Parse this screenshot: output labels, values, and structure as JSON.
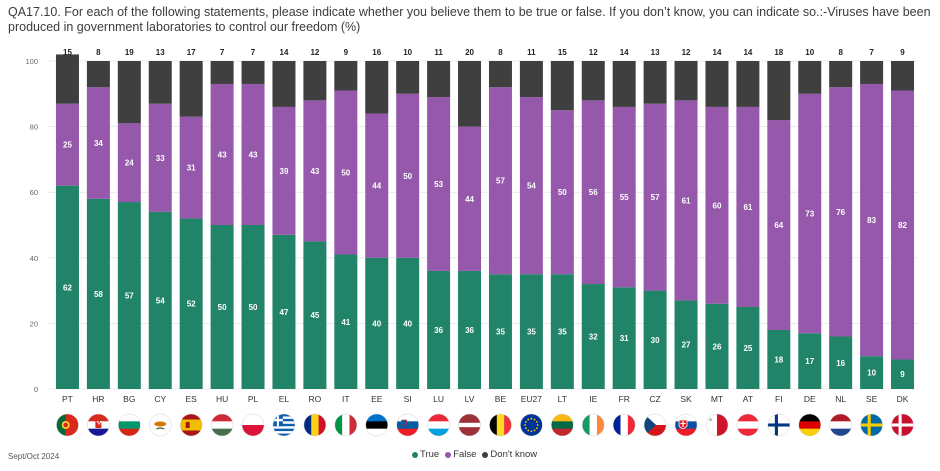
{
  "title": "QA17.10. For each of the following statements, please indicate whether you believe them to be true or false. If you don’t know, you can indicate so.:-Viruses have been produced in government laboratories to control our freedom (%)",
  "source": "Sept/Oct 2024",
  "colors": {
    "true": "#218469",
    "false": "#9558aa",
    "dont_know": "#3f3f3f",
    "grid": "#dcdcdc"
  },
  "chart_data": {
    "type": "bar",
    "stacked": true,
    "orientation": "vertical",
    "ylim": [
      0,
      100
    ],
    "yticks": [
      0,
      20,
      40,
      60,
      80,
      100
    ],
    "grid": true,
    "legend_position": "bottom-center",
    "categories": [
      "PT",
      "HR",
      "BG",
      "CY",
      "ES",
      "HU",
      "PL",
      "EL",
      "RO",
      "IT",
      "EE",
      "SI",
      "LU",
      "LV",
      "BE",
      "EU27",
      "LT",
      "IE",
      "FR",
      "CZ",
      "SK",
      "MT",
      "AT",
      "FI",
      "DE",
      "NL",
      "SE",
      "DK"
    ],
    "series": [
      {
        "name": "True",
        "color": "#218469",
        "values": [
          62,
          58,
          57,
          54,
          52,
          50,
          50,
          47,
          45,
          41,
          40,
          40,
          36,
          36,
          35,
          35,
          35,
          32,
          31,
          30,
          27,
          26,
          25,
          18,
          17,
          16,
          10,
          9
        ]
      },
      {
        "name": "False",
        "color": "#9558aa",
        "values": [
          25,
          34,
          24,
          33,
          31,
          43,
          43,
          39,
          43,
          50,
          44,
          50,
          53,
          44,
          57,
          54,
          50,
          56,
          55,
          57,
          61,
          60,
          61,
          64,
          73,
          76,
          83,
          82
        ]
      },
      {
        "name": "Don't know",
        "color": "#3f3f3f",
        "values": [
          15,
          8,
          19,
          13,
          17,
          7,
          7,
          14,
          12,
          9,
          16,
          10,
          11,
          20,
          8,
          11,
          15,
          12,
          14,
          13,
          12,
          14,
          14,
          18,
          10,
          8,
          7,
          9
        ]
      }
    ]
  },
  "flags": [
    {
      "code": "PT",
      "icon": "portugal-flag-icon"
    },
    {
      "code": "HR",
      "icon": "croatia-flag-icon"
    },
    {
      "code": "BG",
      "icon": "bulgaria-flag-icon"
    },
    {
      "code": "CY",
      "icon": "cyprus-flag-icon"
    },
    {
      "code": "ES",
      "icon": "spain-flag-icon"
    },
    {
      "code": "HU",
      "icon": "hungary-flag-icon"
    },
    {
      "code": "PL",
      "icon": "poland-flag-icon"
    },
    {
      "code": "EL",
      "icon": "greece-flag-icon"
    },
    {
      "code": "RO",
      "icon": "romania-flag-icon"
    },
    {
      "code": "IT",
      "icon": "italy-flag-icon"
    },
    {
      "code": "EE",
      "icon": "estonia-flag-icon"
    },
    {
      "code": "SI",
      "icon": "slovenia-flag-icon"
    },
    {
      "code": "LU",
      "icon": "luxembourg-flag-icon"
    },
    {
      "code": "LV",
      "icon": "latvia-flag-icon"
    },
    {
      "code": "BE",
      "icon": "belgium-flag-icon"
    },
    {
      "code": "EU27",
      "icon": "eu-flag-icon"
    },
    {
      "code": "LT",
      "icon": "lithuania-flag-icon"
    },
    {
      "code": "IE",
      "icon": "ireland-flag-icon"
    },
    {
      "code": "FR",
      "icon": "france-flag-icon"
    },
    {
      "code": "CZ",
      "icon": "czechia-flag-icon"
    },
    {
      "code": "SK",
      "icon": "slovakia-flag-icon"
    },
    {
      "code": "MT",
      "icon": "malta-flag-icon"
    },
    {
      "code": "AT",
      "icon": "austria-flag-icon"
    },
    {
      "code": "FI",
      "icon": "finland-flag-icon"
    },
    {
      "code": "DE",
      "icon": "germany-flag-icon"
    },
    {
      "code": "NL",
      "icon": "netherlands-flag-icon"
    },
    {
      "code": "SE",
      "icon": "sweden-flag-icon"
    },
    {
      "code": "DK",
      "icon": "denmark-flag-icon"
    }
  ]
}
